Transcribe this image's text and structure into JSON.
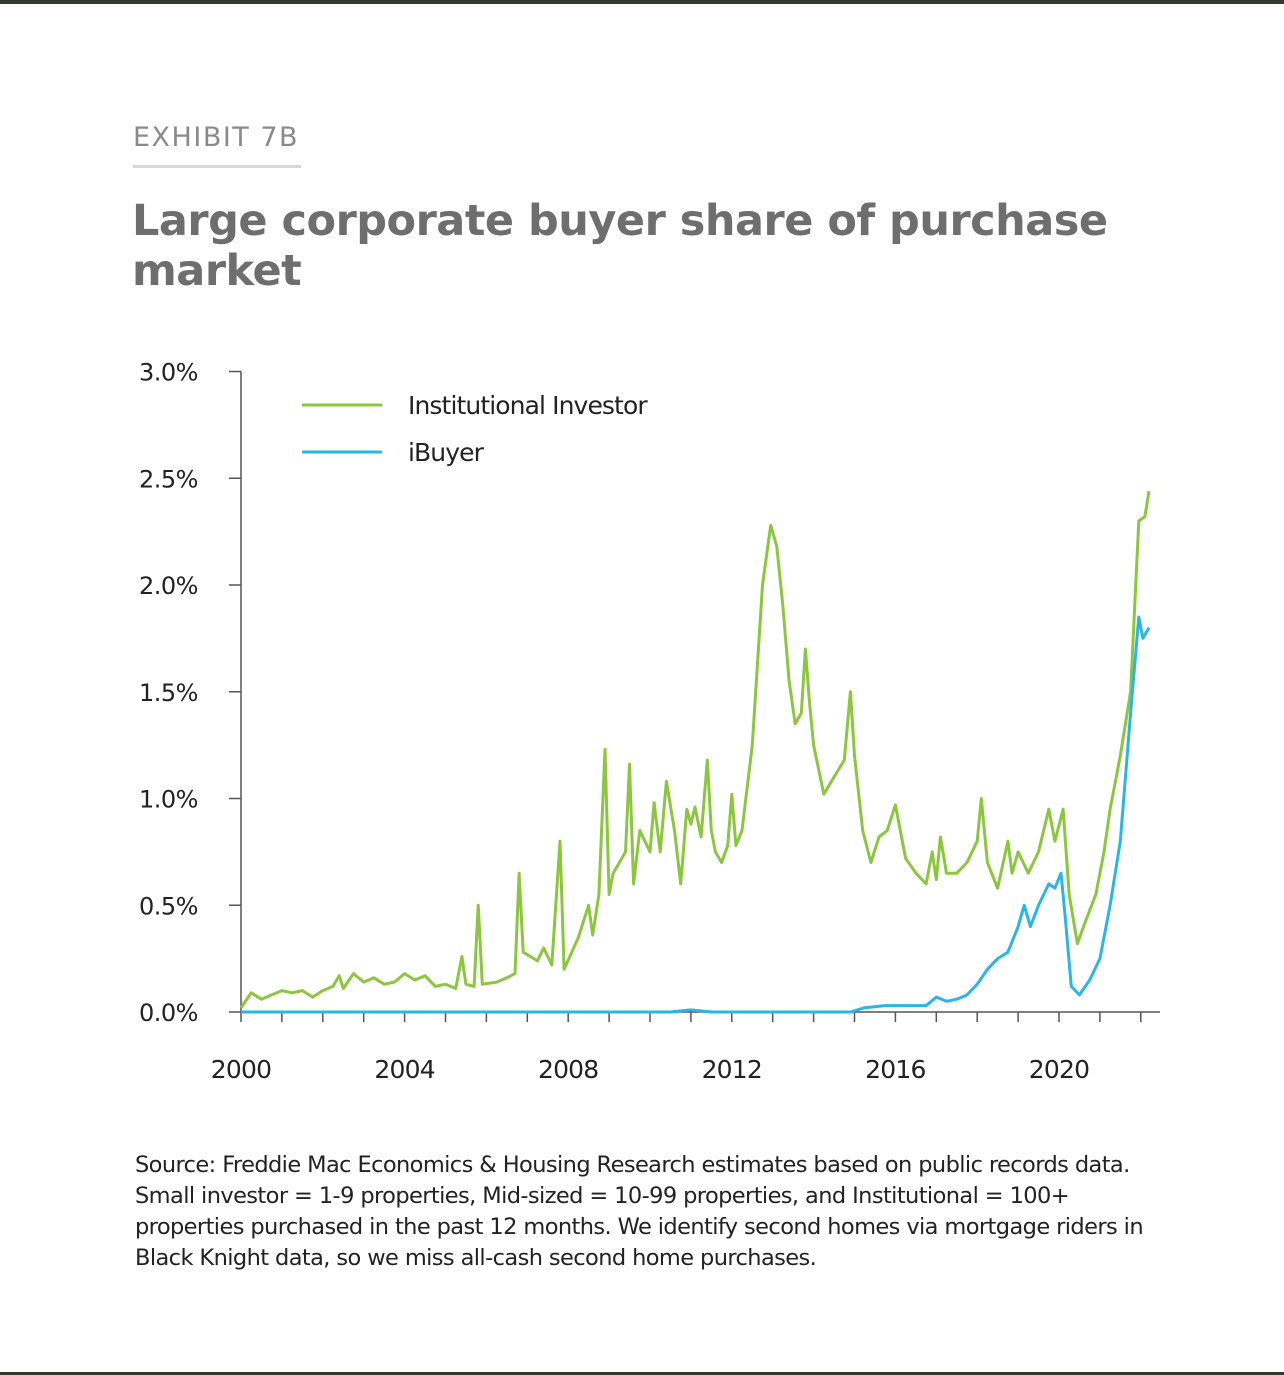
{
  "exhibit_label": "EXHIBIT 7B",
  "source_note": "Source: Freddie Mac Economics & Housing Research estimates based on public records data. Small investor = 1-9 properties, Mid-sized = 10-99 properties, and Institutional = 100+ properties purchased in the past 12 months. We identify second homes via mortgage riders in Black Knight data, so we miss all-cash second home purchases.",
  "colors": {
    "institutional": "#8cc63f",
    "ibuyer": "#29b6e6",
    "axis": "#555555"
  },
  "chart_data": {
    "type": "line",
    "title": "Large corporate buyer share of purchase market",
    "xlabel": "",
    "ylabel": "",
    "xlim": [
      2000,
      2022.5
    ],
    "ylim": [
      0,
      3.0
    ],
    "x_ticks": [
      2000,
      2004,
      2008,
      2012,
      2016,
      2020
    ],
    "x_tick_labels": [
      "2000",
      "2004",
      "2008",
      "2012",
      "2016",
      "2020"
    ],
    "y_ticks": [
      0,
      0.5,
      1.0,
      1.5,
      2.0,
      2.5,
      3.0
    ],
    "y_tick_labels": [
      "0.0%",
      "0.5%",
      "1.0%",
      "1.5%",
      "2.0%",
      "2.5%",
      "3.0%"
    ],
    "legend_position": "top-left",
    "series": [
      {
        "name": "Institutional Investor",
        "points": [
          [
            2000.0,
            0.02
          ],
          [
            2000.25,
            0.09
          ],
          [
            2000.5,
            0.06
          ],
          [
            2000.75,
            0.08
          ],
          [
            2001.0,
            0.1
          ],
          [
            2001.25,
            0.09
          ],
          [
            2001.5,
            0.1
          ],
          [
            2001.75,
            0.07
          ],
          [
            2002.0,
            0.1
          ],
          [
            2002.25,
            0.12
          ],
          [
            2002.4,
            0.17
          ],
          [
            2002.5,
            0.11
          ],
          [
            2002.75,
            0.18
          ],
          [
            2003.0,
            0.14
          ],
          [
            2003.25,
            0.16
          ],
          [
            2003.5,
            0.13
          ],
          [
            2003.75,
            0.14
          ],
          [
            2004.0,
            0.18
          ],
          [
            2004.25,
            0.15
          ],
          [
            2004.5,
            0.17
          ],
          [
            2004.75,
            0.12
          ],
          [
            2005.0,
            0.13
          ],
          [
            2005.25,
            0.11
          ],
          [
            2005.4,
            0.26
          ],
          [
            2005.5,
            0.13
          ],
          [
            2005.7,
            0.12
          ],
          [
            2005.8,
            0.5
          ],
          [
            2005.9,
            0.13
          ],
          [
            2006.25,
            0.14
          ],
          [
            2006.5,
            0.16
          ],
          [
            2006.7,
            0.18
          ],
          [
            2006.8,
            0.65
          ],
          [
            2006.9,
            0.28
          ],
          [
            2007.25,
            0.24
          ],
          [
            2007.4,
            0.3
          ],
          [
            2007.6,
            0.22
          ],
          [
            2007.8,
            0.8
          ],
          [
            2007.9,
            0.2
          ],
          [
            2008.25,
            0.35
          ],
          [
            2008.5,
            0.5
          ],
          [
            2008.6,
            0.36
          ],
          [
            2008.75,
            0.55
          ],
          [
            2008.9,
            1.23
          ],
          [
            2009.0,
            0.55
          ],
          [
            2009.1,
            0.65
          ],
          [
            2009.4,
            0.75
          ],
          [
            2009.5,
            1.16
          ],
          [
            2009.6,
            0.6
          ],
          [
            2009.75,
            0.85
          ],
          [
            2010.0,
            0.75
          ],
          [
            2010.1,
            0.98
          ],
          [
            2010.25,
            0.75
          ],
          [
            2010.4,
            1.08
          ],
          [
            2010.6,
            0.85
          ],
          [
            2010.75,
            0.6
          ],
          [
            2010.9,
            0.95
          ],
          [
            2011.0,
            0.88
          ],
          [
            2011.1,
            0.96
          ],
          [
            2011.25,
            0.82
          ],
          [
            2011.4,
            1.18
          ],
          [
            2011.5,
            0.85
          ],
          [
            2011.6,
            0.75
          ],
          [
            2011.75,
            0.7
          ],
          [
            2011.9,
            0.78
          ],
          [
            2012.0,
            1.02
          ],
          [
            2012.1,
            0.78
          ],
          [
            2012.25,
            0.85
          ],
          [
            2012.5,
            1.25
          ],
          [
            2012.75,
            2.0
          ],
          [
            2012.95,
            2.28
          ],
          [
            2013.1,
            2.18
          ],
          [
            2013.25,
            1.9
          ],
          [
            2013.4,
            1.55
          ],
          [
            2013.55,
            1.35
          ],
          [
            2013.7,
            1.4
          ],
          [
            2013.8,
            1.7
          ],
          [
            2013.9,
            1.45
          ],
          [
            2014.0,
            1.25
          ],
          [
            2014.25,
            1.02
          ],
          [
            2014.5,
            1.1
          ],
          [
            2014.75,
            1.18
          ],
          [
            2014.9,
            1.5
          ],
          [
            2015.0,
            1.2
          ],
          [
            2015.2,
            0.85
          ],
          [
            2015.4,
            0.7
          ],
          [
            2015.6,
            0.82
          ],
          [
            2015.8,
            0.85
          ],
          [
            2016.0,
            0.97
          ],
          [
            2016.25,
            0.72
          ],
          [
            2016.5,
            0.65
          ],
          [
            2016.75,
            0.6
          ],
          [
            2016.9,
            0.75
          ],
          [
            2017.0,
            0.62
          ],
          [
            2017.1,
            0.82
          ],
          [
            2017.25,
            0.65
          ],
          [
            2017.5,
            0.65
          ],
          [
            2017.75,
            0.7
          ],
          [
            2018.0,
            0.8
          ],
          [
            2018.1,
            1.0
          ],
          [
            2018.25,
            0.7
          ],
          [
            2018.5,
            0.58
          ],
          [
            2018.75,
            0.8
          ],
          [
            2018.85,
            0.65
          ],
          [
            2019.0,
            0.75
          ],
          [
            2019.25,
            0.65
          ],
          [
            2019.5,
            0.75
          ],
          [
            2019.75,
            0.95
          ],
          [
            2019.9,
            0.8
          ],
          [
            2020.1,
            0.95
          ],
          [
            2020.25,
            0.55
          ],
          [
            2020.45,
            0.32
          ],
          [
            2020.6,
            0.4
          ],
          [
            2020.9,
            0.55
          ],
          [
            2021.1,
            0.75
          ],
          [
            2021.25,
            0.95
          ],
          [
            2021.5,
            1.2
          ],
          [
            2021.75,
            1.5
          ],
          [
            2021.95,
            2.3
          ],
          [
            2022.1,
            2.32
          ],
          [
            2022.2,
            2.44
          ]
        ]
      },
      {
        "name": "iBuyer",
        "points": [
          [
            2000.0,
            0.0
          ],
          [
            2010.5,
            0.0
          ],
          [
            2011.0,
            0.01
          ],
          [
            2011.5,
            0.0
          ],
          [
            2014.5,
            0.0
          ],
          [
            2014.9,
            0.0
          ],
          [
            2015.25,
            0.02
          ],
          [
            2015.75,
            0.03
          ],
          [
            2016.25,
            0.03
          ],
          [
            2016.75,
            0.03
          ],
          [
            2017.0,
            0.07
          ],
          [
            2017.25,
            0.05
          ],
          [
            2017.5,
            0.06
          ],
          [
            2017.75,
            0.08
          ],
          [
            2018.0,
            0.13
          ],
          [
            2018.25,
            0.2
          ],
          [
            2018.5,
            0.25
          ],
          [
            2018.75,
            0.28
          ],
          [
            2019.0,
            0.4
          ],
          [
            2019.15,
            0.5
          ],
          [
            2019.3,
            0.4
          ],
          [
            2019.5,
            0.5
          ],
          [
            2019.75,
            0.6
          ],
          [
            2019.9,
            0.58
          ],
          [
            2020.05,
            0.65
          ],
          [
            2020.15,
            0.45
          ],
          [
            2020.3,
            0.12
          ],
          [
            2020.5,
            0.08
          ],
          [
            2020.75,
            0.15
          ],
          [
            2021.0,
            0.25
          ],
          [
            2021.25,
            0.5
          ],
          [
            2021.5,
            0.8
          ],
          [
            2021.75,
            1.4
          ],
          [
            2021.95,
            1.85
          ],
          [
            2022.05,
            1.75
          ],
          [
            2022.2,
            1.8
          ]
        ]
      }
    ]
  }
}
